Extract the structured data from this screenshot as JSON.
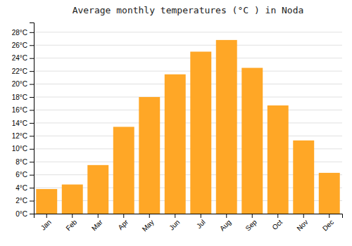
{
  "chart_data": {
    "type": "bar",
    "title": "Average monthly temperatures (°C ) in Noda",
    "categories": [
      "Jan",
      "Feb",
      "Mar",
      "Apr",
      "May",
      "Jun",
      "Jul",
      "Aug",
      "Sep",
      "Oct",
      "Nov",
      "Dec"
    ],
    "values": [
      3.8,
      4.5,
      7.5,
      13.4,
      18.0,
      21.5,
      25.0,
      26.8,
      22.5,
      16.7,
      11.3,
      6.3
    ],
    "color": "#FFA726",
    "ylim": [
      0,
      29.5
    ],
    "yticks": [
      {
        "value": 0,
        "label": "0°C"
      },
      {
        "value": 2,
        "label": "2°C"
      },
      {
        "value": 4,
        "label": "4°C"
      },
      {
        "value": 6,
        "label": "6°C"
      },
      {
        "value": 8,
        "label": "8°C"
      },
      {
        "value": 10,
        "label": "10°C"
      },
      {
        "value": 12,
        "label": "12°C"
      },
      {
        "value": 14,
        "label": "14°C"
      },
      {
        "value": 16,
        "label": "16°C"
      },
      {
        "value": 18,
        "label": "18°C"
      },
      {
        "value": 20,
        "label": "20°C"
      },
      {
        "value": 22,
        "label": "22°C"
      },
      {
        "value": 24,
        "label": "24°C"
      },
      {
        "value": 26,
        "label": "26°C"
      },
      {
        "value": 28,
        "label": "28°C"
      }
    ],
    "grid": true
  }
}
